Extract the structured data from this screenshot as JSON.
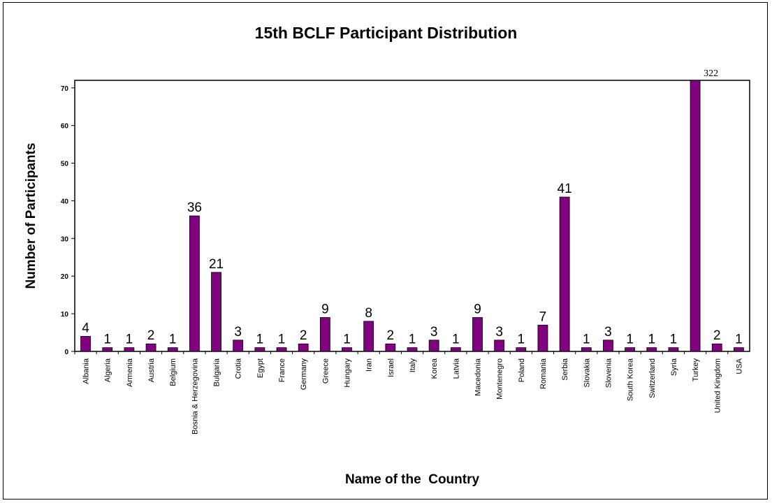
{
  "chart_data": {
    "type": "bar",
    "title": "15th BCLF Participant Distribution",
    "xlabel": "Name of the  Country",
    "ylabel": "Number of Participants",
    "ylim": [
      0,
      72
    ],
    "yticks": [
      0,
      10,
      20,
      30,
      40,
      50,
      60,
      70
    ],
    "grid": false,
    "bar_color": "#800080",
    "categories": [
      "Albania",
      "Algeria",
      "Armenia",
      "Austria",
      "Belgium",
      "Bosnia & Herzegovina",
      "Bulgaria",
      "Crotia",
      "Egypt",
      "France",
      "Germany",
      "Greece",
      "Hungary",
      "Iran",
      "Israel",
      "Italy",
      "Korea",
      "Latvia",
      "Macedonia",
      "Montenegro",
      "Poland",
      "Romania",
      "Serbia",
      "Slovakia",
      "Slovenia",
      "South Korea",
      "Switzerland",
      "Syria",
      "Turkey",
      "United Kingdom",
      "USA"
    ],
    "values": [
      4,
      1,
      1,
      2,
      1,
      36,
      21,
      3,
      1,
      1,
      2,
      9,
      1,
      8,
      2,
      1,
      3,
      1,
      9,
      3,
      1,
      7,
      41,
      1,
      3,
      1,
      1,
      1,
      322,
      2,
      1
    ],
    "data_labels": [
      "4",
      "1",
      "1",
      "2",
      "1",
      "36",
      "21",
      "3",
      "1",
      "1",
      "2",
      "9",
      "1",
      "8",
      "2",
      "1",
      "3",
      "1",
      "9",
      "3",
      "1",
      "7",
      "41",
      "1",
      "3",
      "1",
      "1",
      "1",
      "322",
      "2",
      "1"
    ]
  }
}
